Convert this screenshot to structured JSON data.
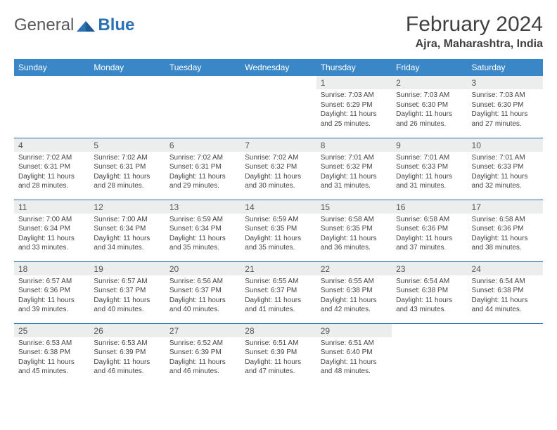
{
  "logo": {
    "text1": "General",
    "text2": "Blue"
  },
  "header": {
    "title": "February 2024",
    "location": "Ajra, Maharashtra, India"
  },
  "dayNames": [
    "Sunday",
    "Monday",
    "Tuesday",
    "Wednesday",
    "Thursday",
    "Friday",
    "Saturday"
  ],
  "colors": {
    "headerBg": "#3a87c8",
    "border": "#2a72b5",
    "daynumBg": "#eceded"
  },
  "startOffset": 4,
  "days": [
    {
      "n": 1,
      "sr": "7:03 AM",
      "ss": "6:29 PM",
      "dl": "11 hours and 25 minutes."
    },
    {
      "n": 2,
      "sr": "7:03 AM",
      "ss": "6:30 PM",
      "dl": "11 hours and 26 minutes."
    },
    {
      "n": 3,
      "sr": "7:03 AM",
      "ss": "6:30 PM",
      "dl": "11 hours and 27 minutes."
    },
    {
      "n": 4,
      "sr": "7:02 AM",
      "ss": "6:31 PM",
      "dl": "11 hours and 28 minutes."
    },
    {
      "n": 5,
      "sr": "7:02 AM",
      "ss": "6:31 PM",
      "dl": "11 hours and 28 minutes."
    },
    {
      "n": 6,
      "sr": "7:02 AM",
      "ss": "6:31 PM",
      "dl": "11 hours and 29 minutes."
    },
    {
      "n": 7,
      "sr": "7:02 AM",
      "ss": "6:32 PM",
      "dl": "11 hours and 30 minutes."
    },
    {
      "n": 8,
      "sr": "7:01 AM",
      "ss": "6:32 PM",
      "dl": "11 hours and 31 minutes."
    },
    {
      "n": 9,
      "sr": "7:01 AM",
      "ss": "6:33 PM",
      "dl": "11 hours and 31 minutes."
    },
    {
      "n": 10,
      "sr": "7:01 AM",
      "ss": "6:33 PM",
      "dl": "11 hours and 32 minutes."
    },
    {
      "n": 11,
      "sr": "7:00 AM",
      "ss": "6:34 PM",
      "dl": "11 hours and 33 minutes."
    },
    {
      "n": 12,
      "sr": "7:00 AM",
      "ss": "6:34 PM",
      "dl": "11 hours and 34 minutes."
    },
    {
      "n": 13,
      "sr": "6:59 AM",
      "ss": "6:34 PM",
      "dl": "11 hours and 35 minutes."
    },
    {
      "n": 14,
      "sr": "6:59 AM",
      "ss": "6:35 PM",
      "dl": "11 hours and 35 minutes."
    },
    {
      "n": 15,
      "sr": "6:58 AM",
      "ss": "6:35 PM",
      "dl": "11 hours and 36 minutes."
    },
    {
      "n": 16,
      "sr": "6:58 AM",
      "ss": "6:36 PM",
      "dl": "11 hours and 37 minutes."
    },
    {
      "n": 17,
      "sr": "6:58 AM",
      "ss": "6:36 PM",
      "dl": "11 hours and 38 minutes."
    },
    {
      "n": 18,
      "sr": "6:57 AM",
      "ss": "6:36 PM",
      "dl": "11 hours and 39 minutes."
    },
    {
      "n": 19,
      "sr": "6:57 AM",
      "ss": "6:37 PM",
      "dl": "11 hours and 40 minutes."
    },
    {
      "n": 20,
      "sr": "6:56 AM",
      "ss": "6:37 PM",
      "dl": "11 hours and 40 minutes."
    },
    {
      "n": 21,
      "sr": "6:55 AM",
      "ss": "6:37 PM",
      "dl": "11 hours and 41 minutes."
    },
    {
      "n": 22,
      "sr": "6:55 AM",
      "ss": "6:38 PM",
      "dl": "11 hours and 42 minutes."
    },
    {
      "n": 23,
      "sr": "6:54 AM",
      "ss": "6:38 PM",
      "dl": "11 hours and 43 minutes."
    },
    {
      "n": 24,
      "sr": "6:54 AM",
      "ss": "6:38 PM",
      "dl": "11 hours and 44 minutes."
    },
    {
      "n": 25,
      "sr": "6:53 AM",
      "ss": "6:38 PM",
      "dl": "11 hours and 45 minutes."
    },
    {
      "n": 26,
      "sr": "6:53 AM",
      "ss": "6:39 PM",
      "dl": "11 hours and 46 minutes."
    },
    {
      "n": 27,
      "sr": "6:52 AM",
      "ss": "6:39 PM",
      "dl": "11 hours and 46 minutes."
    },
    {
      "n": 28,
      "sr": "6:51 AM",
      "ss": "6:39 PM",
      "dl": "11 hours and 47 minutes."
    },
    {
      "n": 29,
      "sr": "6:51 AM",
      "ss": "6:40 PM",
      "dl": "11 hours and 48 minutes."
    }
  ]
}
